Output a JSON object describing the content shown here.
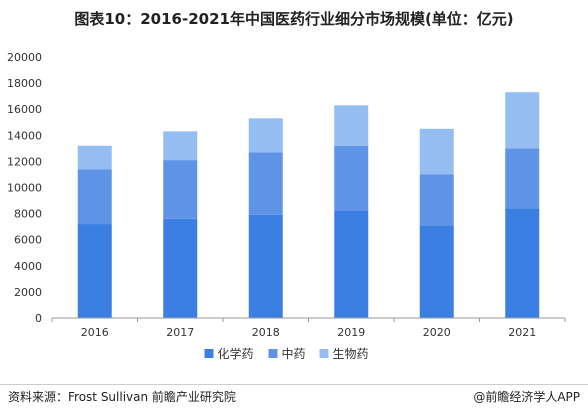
{
  "title": "图表10：2016-2021年中国医药行业细分市场规模(单位：亿元)",
  "source": "资料来源：Frost Sullivan 前瞻产业研究院",
  "credit": "@前瞻经济学人APP",
  "colors": {
    "化学药": "#3b7fe3",
    "中药": "#5e93e6",
    "生物药": "#94bdf2"
  },
  "chart_data": {
    "type": "bar",
    "stacked": true,
    "categories": [
      "2016",
      "2017",
      "2018",
      "2019",
      "2020",
      "2021"
    ],
    "series": [
      {
        "name": "化学药",
        "values": [
          7200,
          7600,
          7900,
          8200,
          7100,
          8400
        ]
      },
      {
        "name": "中药",
        "values": [
          4200,
          4500,
          4800,
          5000,
          3900,
          4600
        ]
      },
      {
        "name": "生物药",
        "values": [
          1800,
          2200,
          2600,
          3100,
          3500,
          4300
        ]
      }
    ],
    "ylim": [
      0,
      20000
    ],
    "yticks": [
      0,
      2000,
      4000,
      6000,
      8000,
      10000,
      12000,
      14000,
      16000,
      18000,
      20000
    ],
    "legend_position": "bottom-center",
    "grid": false
  }
}
